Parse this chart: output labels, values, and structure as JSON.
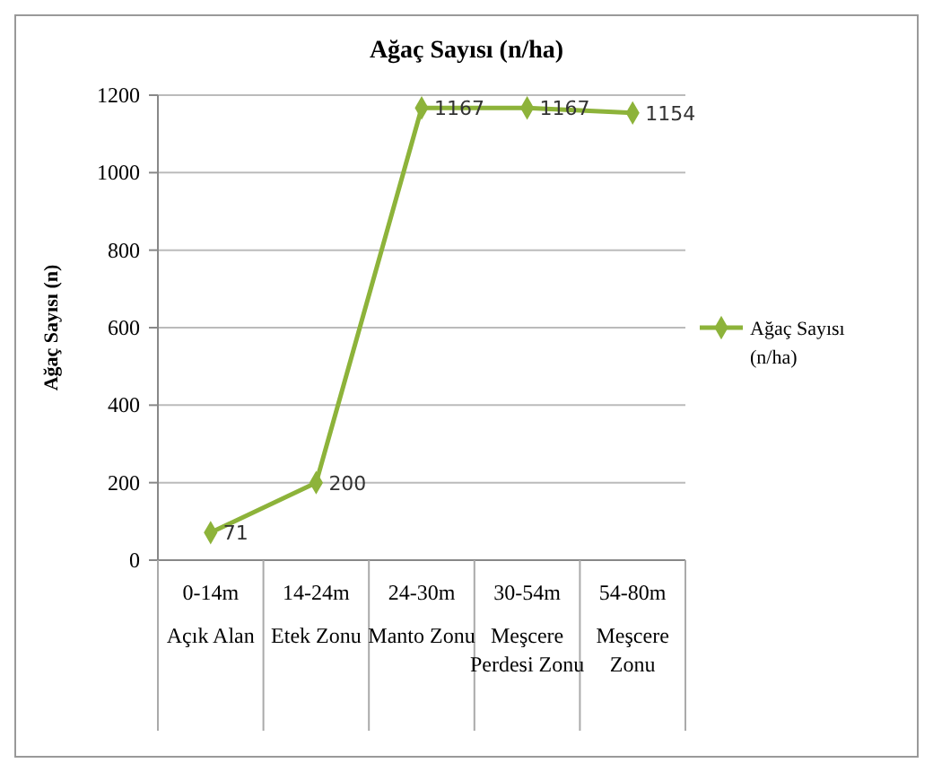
{
  "chart_data": {
    "type": "line",
    "title": "Ağaç Sayısı (n/ha)",
    "ylabel": "Ağaç Sayısı (n)",
    "categories": [
      "0-14m\nAçık Alan",
      "14-24m\nEtek Zonu",
      "24-30m\nManto Zonu",
      "30-54m\nMeşcere\nPerdesi Zonu",
      "54-80m\nMeşcere\nZonu"
    ],
    "series": [
      {
        "name": "Ağaç Sayısı (n/ha)",
        "color": "#8db33a",
        "values": [
          71,
          200,
          1167,
          1167,
          1154
        ]
      }
    ],
    "ylim": [
      0,
      1200
    ],
    "yticks": [
      0,
      200,
      400,
      600,
      800,
      1000,
      1200
    ],
    "grid": "y",
    "legend": "right",
    "marker": "diamond",
    "data_labels": true
  }
}
